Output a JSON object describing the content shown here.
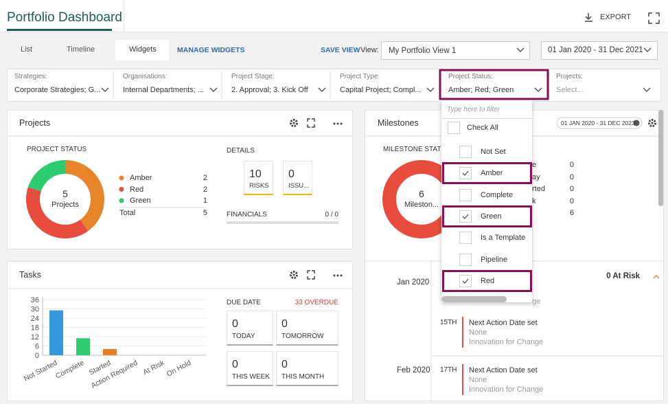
{
  "header": {
    "title": "Portfolio Dashboard",
    "export": "EXPORT"
  },
  "toolbar": {
    "tabs": [
      "List",
      "Timeline",
      "Widgets"
    ],
    "manage_widgets": "MANAGE WIDGETS",
    "save_view": "SAVE VIEW",
    "view_label": "View:",
    "view_value": "My Portfolio View 1",
    "date_range": "01 Jan 2020 - 31 Dec 2021"
  },
  "filters": [
    {
      "label": "Strategies:",
      "value": "Corporate Strategies; G..."
    },
    {
      "label": "Organisations:",
      "value": "Internal Departments; ..."
    },
    {
      "label": "Project Stage:",
      "value": "2. Approval; 3. Kick Off"
    },
    {
      "label": "Project Type:",
      "value": "Capital Project; Compl..."
    },
    {
      "label": "Project Status:",
      "value": "Amber; Red; Green"
    },
    {
      "label": "Projects:",
      "value": "Select..."
    }
  ],
  "projects_widget": {
    "title": "Projects",
    "status_title": "PROJECT STATUS",
    "center_value": 5,
    "center_label": "Projects",
    "legend": [
      {
        "name": "Amber",
        "value": 2,
        "color": "#e8852b"
      },
      {
        "name": "Red",
        "value": 2,
        "color": "#e74c3c"
      },
      {
        "name": "Green",
        "value": 1,
        "color": "#2ecc71"
      }
    ],
    "total_label": "Total",
    "total": 5,
    "details_title": "DETAILS",
    "tiles": [
      {
        "value": 10,
        "label": "RISKS"
      },
      {
        "value": 0,
        "label": "ISSU..."
      }
    ],
    "financials_label": "FINANCIALS",
    "financials_value": "0 / 0"
  },
  "tasks_widget": {
    "title": "Tasks",
    "chart": {
      "type": "bar",
      "categories": [
        "Not Started",
        "Complete",
        "Started",
        "Action Required",
        "At Risk",
        "On Hold"
      ],
      "values": [
        29,
        11,
        4,
        0,
        0,
        0
      ],
      "colors": [
        "#3498db",
        "#2ecc71",
        "#e67e22",
        "#e67e22",
        "#e67e22",
        "#e67e22"
      ],
      "ylim": [
        0,
        36
      ],
      "yticks": [
        0,
        6,
        12,
        18,
        24,
        30,
        36
      ],
      "grid": true
    },
    "due_title": "DUE DATE",
    "overdue": "33 OVERDUE",
    "tiles": [
      {
        "value": 0,
        "label": "TODAY"
      },
      {
        "value": 0,
        "label": "TOMORROW"
      },
      {
        "value": 0,
        "label": "THIS WEEK"
      },
      {
        "value": 0,
        "label": "THIS MONTH"
      }
    ]
  },
  "milestones_widget": {
    "title": "Milestones",
    "date_chip": "01 JAN 2020 - 31 DEC 2023",
    "status_title": "MILESTONE STATUS",
    "center_value": 6,
    "center_label": "Mileston...",
    "color": "#e74c3c",
    "rows": [
      {
        "label": "e",
        "value": 0
      },
      {
        "label": "ay",
        "value": 0
      },
      {
        "label": "rted",
        "value": 0
      },
      {
        "label": "k",
        "value": 0
      },
      {
        "label": null,
        "value": 6
      }
    ],
    "timeline": [
      {
        "month": "Jan 2020",
        "at_risk": "0 At Risk",
        "fragment": "ge",
        "items": [
          {
            "day": "15TH",
            "title": "Next Action Date set",
            "owner": "None",
            "project": "Innovation for Change"
          }
        ]
      },
      {
        "month": "Feb 2020",
        "items": [
          {
            "day": "17TH",
            "title": "Next Action Date set",
            "owner": "None",
            "project": "Innovation for Change"
          }
        ]
      }
    ]
  },
  "status_dropdown": {
    "placeholder": "Type here to filter",
    "check_all": "Check All",
    "options": [
      {
        "label": "Not Set",
        "checked": false
      },
      {
        "label": "Amber",
        "checked": true
      },
      {
        "label": "Complete",
        "checked": false
      },
      {
        "label": "Green",
        "checked": true
      },
      {
        "label": "Is a Template",
        "checked": false
      },
      {
        "label": "Pipeline",
        "checked": false
      },
      {
        "label": "Red",
        "checked": true
      }
    ]
  }
}
